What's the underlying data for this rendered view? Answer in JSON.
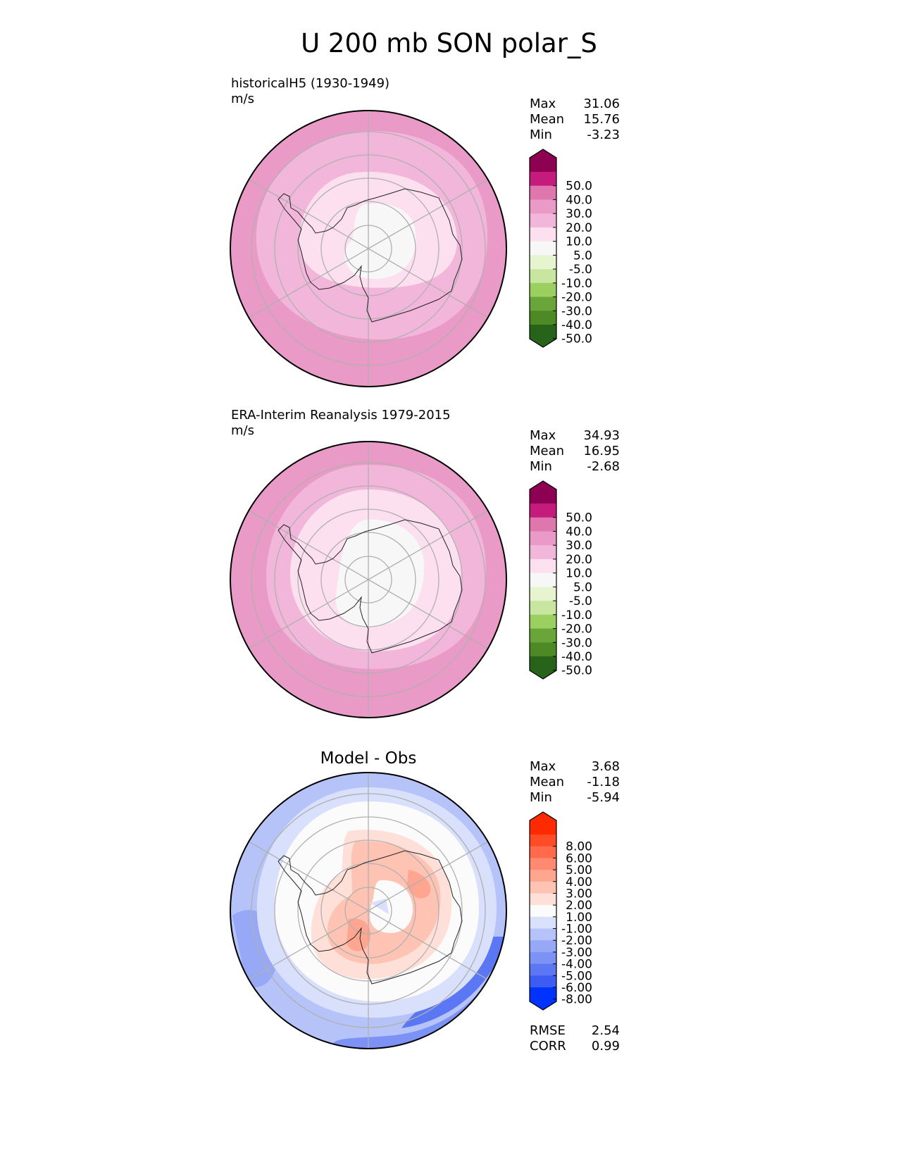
{
  "title": "U 200 mb SON polar_S",
  "panels": [
    {
      "name": "model",
      "label": "historicalH5 (1930-1949)",
      "units": "m/s",
      "stats": [
        {
          "k": "Max",
          "v": "31.06"
        },
        {
          "k": "Mean",
          "v": "15.76"
        },
        {
          "k": "Min",
          "v": "-3.23"
        }
      ]
    },
    {
      "name": "obs",
      "label": "ERA-Interim Reanalysis 1979-2015",
      "units": "m/s",
      "stats": [
        {
          "k": "Max",
          "v": "34.93"
        },
        {
          "k": "Mean",
          "v": "16.95"
        },
        {
          "k": "Min",
          "v": "-2.68"
        }
      ]
    },
    {
      "name": "diff",
      "label": "Model - Obs",
      "stats": [
        {
          "k": "Max",
          "v": "3.68"
        },
        {
          "k": "Mean",
          "v": "-1.18"
        },
        {
          "k": "Min",
          "v": "-5.94"
        }
      ],
      "metrics": [
        {
          "k": "RMSE",
          "v": "2.54"
        },
        {
          "k": "CORR",
          "v": "0.99"
        }
      ]
    }
  ],
  "colorbar_field": {
    "ticks": [
      "50.0",
      "40.0",
      "30.0",
      "20.0",
      "10.0",
      "5.0",
      "-5.0",
      "-10.0",
      "-20.0",
      "-30.0",
      "-40.0",
      "-50.0"
    ],
    "colors": [
      "#8e0152",
      "#c51b7d",
      "#de77ae",
      "#e99ac6",
      "#f1b6da",
      "#fde0ef",
      "#f7f7f7",
      "#e6f5d0",
      "#c8e6a0",
      "#9bd060",
      "#6aa53a",
      "#4d8a26",
      "#276419"
    ]
  },
  "colorbar_diff": {
    "ticks": [
      "8.00",
      "6.00",
      "5.00",
      "4.00",
      "3.00",
      "2.00",
      "1.00",
      "-1.00",
      "-2.00",
      "-3.00",
      "-4.00",
      "-5.00",
      "-6.00",
      "-8.00"
    ],
    "colors": [
      "#ff2a00",
      "#ff4c26",
      "#ff6a4d",
      "#ff8a70",
      "#ffa590",
      "#ffc3b3",
      "#ffe0d8",
      "#fbfbfb",
      "#d8e0fb",
      "#b5c3f8",
      "#96a8f6",
      "#7d92f5",
      "#5c77f3",
      "#3c5cf2",
      "#0033ff"
    ]
  },
  "chart_data": [
    {
      "type": "heatmap",
      "projection": "south polar stereographic",
      "title": "historicalH5 (1930-1949)",
      "units": "m/s",
      "levels": [
        -50,
        -40,
        -30,
        -20,
        -10,
        -5,
        5,
        10,
        20,
        30,
        40,
        50
      ],
      "rings_value_m_s": [
        5,
        10,
        20,
        20,
        20
      ],
      "max": 31.06,
      "mean": 15.76,
      "min": -3.23
    },
    {
      "type": "heatmap",
      "projection": "south polar stereographic",
      "title": "ERA-Interim Reanalysis 1979-2015",
      "units": "m/s",
      "levels": [
        -50,
        -40,
        -30,
        -20,
        -10,
        -5,
        5,
        10,
        20,
        30,
        40,
        50
      ],
      "rings_value_m_s": [
        5,
        10,
        20,
        20,
        20
      ],
      "max": 34.93,
      "mean": 16.95,
      "min": -2.68
    },
    {
      "type": "heatmap",
      "projection": "south polar stereographic",
      "title": "Model - Obs",
      "levels": [
        -8,
        -6,
        -5,
        -4,
        -3,
        -2,
        -1,
        1,
        2,
        3,
        4,
        5,
        6,
        8
      ],
      "max": 3.68,
      "mean": -1.18,
      "min": -5.94,
      "rmse": 2.54,
      "corr": 0.99
    }
  ]
}
